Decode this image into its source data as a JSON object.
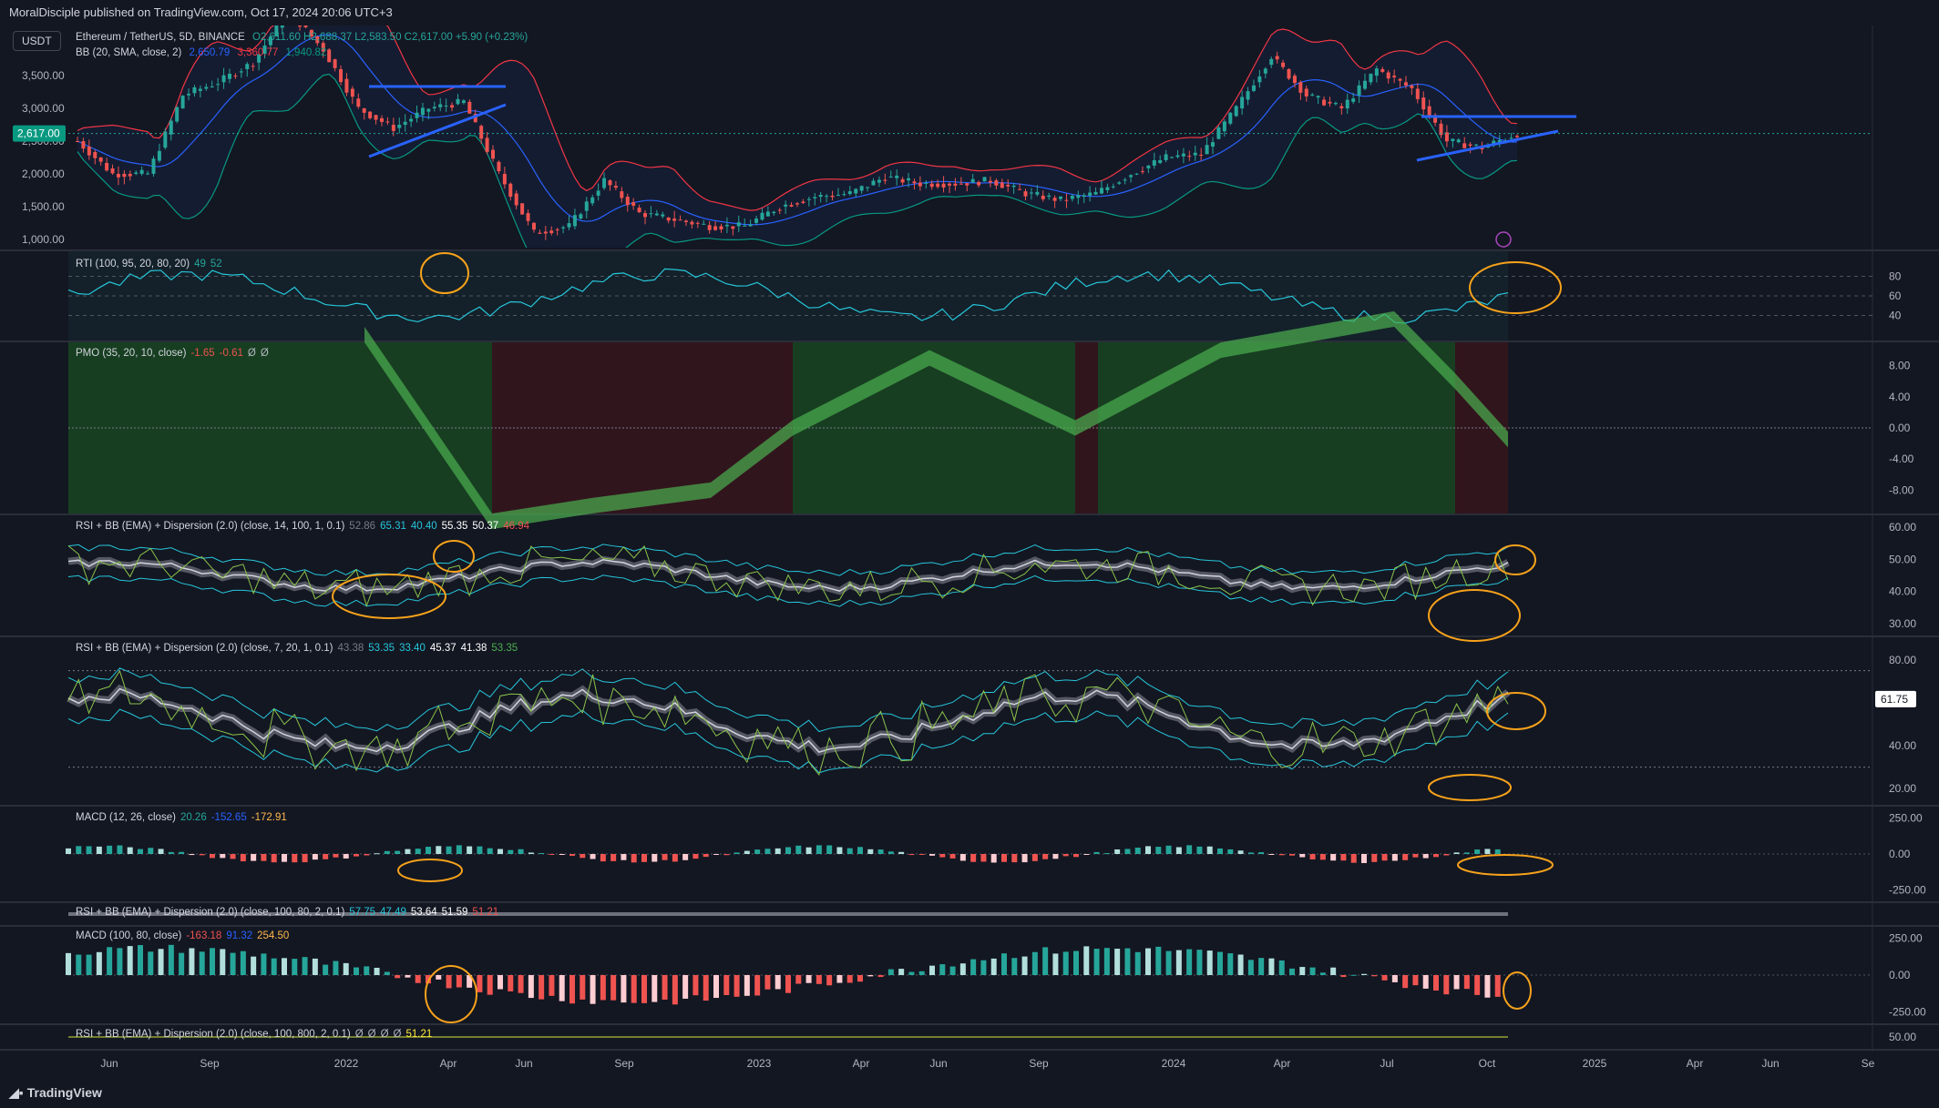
{
  "header": {
    "publisher": "MoralDisciple published on TradingView.com, Oct 17, 2024 20:06 UTC+3",
    "currency": "USDT",
    "symbol_line": "Ethereum / TetherUS, 5D, BINANCE",
    "ohlc": "O2,611.60 H2,688.37 L2,583.50 C2,617.00 +5.90 (+0.23%)",
    "bb_line": "BB (20, SMA, close, 2)",
    "bb_values": [
      "2,650.79",
      "3,360.77",
      "1,940.82"
    ]
  },
  "footer": {
    "brand": "TradingView"
  },
  "colors": {
    "background": "#131722",
    "candle_up": "#26a69a",
    "candle_down": "#ef5350",
    "bb_basis": "#2962ff",
    "bb_upper": "#f23645",
    "bb_lower": "#089981",
    "trendline": "#2962ff",
    "annotation": "#f7a21b"
  },
  "price_panel": {
    "last_price": "2,617.00",
    "axis_labels": [
      "3,500.00",
      "3,000.00",
      "2,500.00",
      "2,000.00",
      "1,500.00",
      "1,000.00"
    ]
  },
  "panels": [
    {
      "name": "RTI",
      "label": "RTI (100, 95, 20, 80, 20)",
      "values": [
        "49",
        "52"
      ],
      "value_colors": [
        "#26a69a",
        "#26a69a"
      ],
      "axis": [
        "80",
        "60",
        "40"
      ]
    },
    {
      "name": "PMO",
      "label": "PMO (35, 20, 10, close)",
      "values": [
        "-1.65",
        "-0.61",
        "Ø",
        "Ø"
      ],
      "value_colors": [
        "#ef5350",
        "#ef5350",
        "#b2b5be",
        "#b2b5be"
      ],
      "axis": [
        "8.00",
        "4.00",
        "0.00",
        "-4.00",
        "-8.00"
      ]
    },
    {
      "name": "RSI1",
      "label": "RSI + BB (EMA) + Dispersion (2.0) (close, 14, 100, 1, 0.1)",
      "values": [
        "52.86",
        "65.31",
        "40.40",
        "55.35",
        "50.37",
        "46.94"
      ],
      "value_colors": [
        "#787b86",
        "#26c6da",
        "#26c6da",
        "#ffffff",
        "#ffffff",
        "#ef5350"
      ],
      "axis": [
        "60.00",
        "50.00",
        "40.00",
        "30.00"
      ]
    },
    {
      "name": "RSI2",
      "label": "RSI + BB (EMA) + Dispersion (2.0) (close, 7, 20, 1, 0.1)",
      "values": [
        "43.38",
        "53.35",
        "33.40",
        "45.37",
        "41.38",
        "53.35"
      ],
      "value_colors": [
        "#787b86",
        "#26c6da",
        "#26c6da",
        "#ffffff",
        "#ffffff",
        "#4caf50"
      ],
      "axis": [
        "80.00",
        "60.00",
        "40.00",
        "20.00"
      ],
      "tag": "61.75"
    },
    {
      "name": "MACD1",
      "label": "MACD (12, 26, close)",
      "values": [
        "20.26",
        "-152.65",
        "-172.91"
      ],
      "value_colors": [
        "#26a69a",
        "#2962ff",
        "#ffb74d"
      ],
      "axis": [
        "250.00",
        "0.00",
        "-250.00"
      ]
    },
    {
      "name": "RSI3",
      "label": "RSI + BB (EMA) + Dispersion (2.0) (close, 100, 80, 2, 0.1)",
      "values": [
        "57.75",
        "47.49",
        "53.64",
        "51.59",
        "51.21"
      ],
      "value_colors": [
        "#26c6da",
        "#26c6da",
        "#ffffff",
        "#ffffff",
        "#ef5350"
      ],
      "axis": []
    },
    {
      "name": "MACD2",
      "label": "MACD (100, 80, close)",
      "values": [
        "-163.18",
        "91.32",
        "254.50"
      ],
      "value_colors": [
        "#ef5350",
        "#2962ff",
        "#ffb74d"
      ],
      "axis": [
        "250.00",
        "0.00",
        "-250.00"
      ]
    },
    {
      "name": "RSI4",
      "label": "RSI + BB (EMA) + Dispersion (2.0) (close, 100, 800, 2, 0.1)",
      "values": [
        "Ø",
        "Ø",
        "Ø",
        "Ø",
        "51.21"
      ],
      "value_colors": [
        "#b2b5be",
        "#b2b5be",
        "#b2b5be",
        "#b2b5be",
        "#ffeb3b"
      ],
      "axis": [
        "50.00"
      ]
    }
  ],
  "time_axis": [
    "Jun",
    "Sep",
    "2022",
    "Apr",
    "Jun",
    "Sep",
    "2023",
    "Apr",
    "Jun",
    "Sep",
    "2024",
    "Apr",
    "Jul",
    "Oct",
    "2025",
    "Apr",
    "Jun",
    "Se"
  ],
  "chart_data": {
    "type": "candlestick",
    "title": "Ethereum / TetherUS, 5D, BINANCE",
    "timeframe": "5D",
    "x_range": [
      "2021-05",
      "2025-09"
    ],
    "y_range": [
      900,
      4100
    ],
    "last_close": 2617.0,
    "ohlc_last": {
      "open": 2611.6,
      "high": 2688.37,
      "low": 2583.5,
      "close": 2617.0,
      "change": 5.9,
      "change_pct": 0.23
    },
    "bollinger": {
      "basis": 2650.79,
      "upper": 3360.77,
      "lower": 1940.82
    },
    "approx_close_path": [
      {
        "x": "2021-05",
        "y": 2500
      },
      {
        "x": "2021-06",
        "y": 2000
      },
      {
        "x": "2021-07",
        "y": 2000
      },
      {
        "x": "2021-08",
        "y": 3200
      },
      {
        "x": "2021-09",
        "y": 3400
      },
      {
        "x": "2021-10",
        "y": 3700
      },
      {
        "x": "2021-11",
        "y": 4500
      },
      {
        "x": "2021-12",
        "y": 3900
      },
      {
        "x": "2022-01",
        "y": 3000
      },
      {
        "x": "2022-02",
        "y": 2700
      },
      {
        "x": "2022-03",
        "y": 3000
      },
      {
        "x": "2022-04",
        "y": 3100
      },
      {
        "x": "2022-05",
        "y": 2000
      },
      {
        "x": "2022-06",
        "y": 1100
      },
      {
        "x": "2022-07",
        "y": 1200
      },
      {
        "x": "2022-08",
        "y": 1900
      },
      {
        "x": "2022-09",
        "y": 1400
      },
      {
        "x": "2022-10",
        "y": 1300
      },
      {
        "x": "2022-11",
        "y": 1200
      },
      {
        "x": "2022-12",
        "y": 1200
      },
      {
        "x": "2023-01",
        "y": 1500
      },
      {
        "x": "2023-02",
        "y": 1650
      },
      {
        "x": "2023-03",
        "y": 1700
      },
      {
        "x": "2023-04",
        "y": 1950
      },
      {
        "x": "2023-05",
        "y": 1850
      },
      {
        "x": "2023-06",
        "y": 1850
      },
      {
        "x": "2023-07",
        "y": 1900
      },
      {
        "x": "2023-08",
        "y": 1700
      },
      {
        "x": "2023-09",
        "y": 1600
      },
      {
        "x": "2023-10",
        "y": 1700
      },
      {
        "x": "2023-11",
        "y": 2000
      },
      {
        "x": "2023-12",
        "y": 2250
      },
      {
        "x": "2024-01",
        "y": 2300
      },
      {
        "x": "2024-02",
        "y": 3000
      },
      {
        "x": "2024-03",
        "y": 3800
      },
      {
        "x": "2024-04",
        "y": 3200
      },
      {
        "x": "2024-05",
        "y": 3000
      },
      {
        "x": "2024-06",
        "y": 3600
      },
      {
        "x": "2024-07",
        "y": 3300
      },
      {
        "x": "2024-08",
        "y": 2500
      },
      {
        "x": "2024-09",
        "y": 2400
      },
      {
        "x": "2024-10",
        "y": 2617
      }
    ]
  }
}
